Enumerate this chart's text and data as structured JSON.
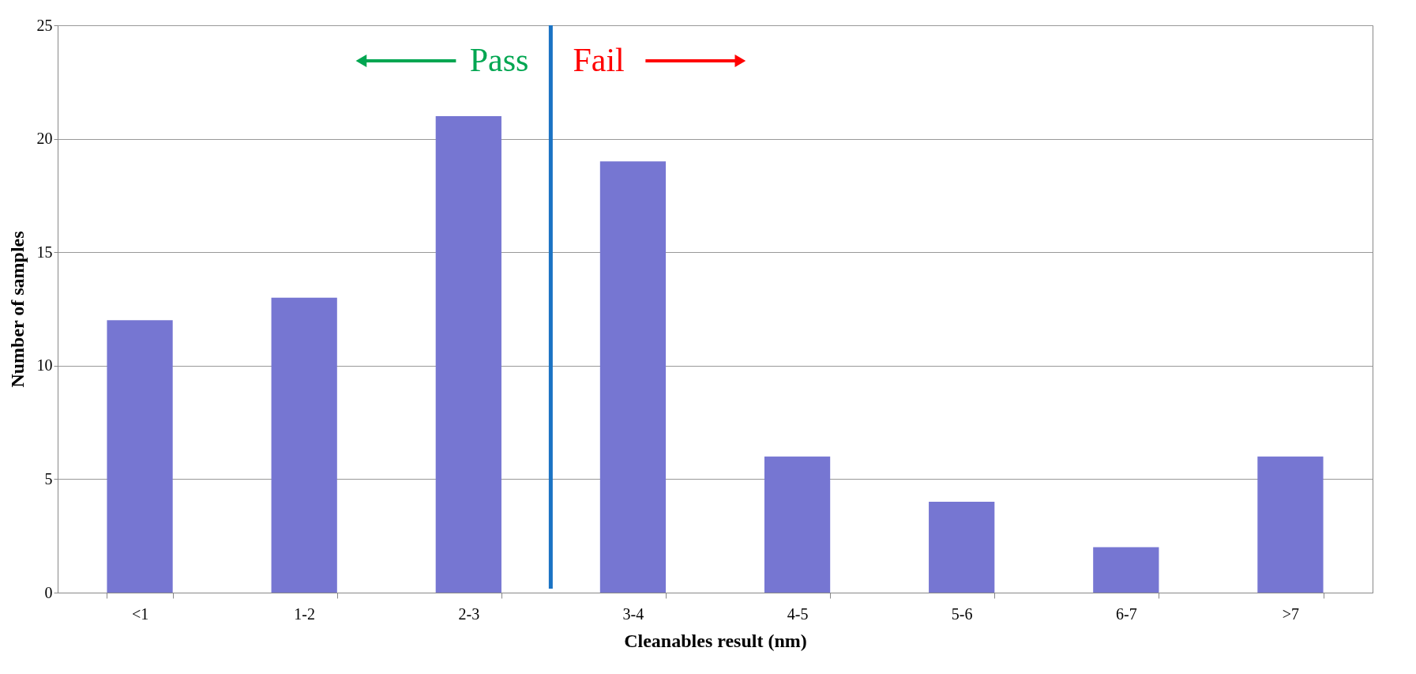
{
  "chart_data": {
    "type": "bar",
    "xlabel": "Cleanables result (nm)",
    "ylabel": "Number of samples",
    "categories": [
      "<1",
      "1-2",
      "2-3",
      "3-4",
      "4-5",
      "5-6",
      "6-7",
      ">7"
    ],
    "values": [
      12,
      13,
      21,
      19,
      6,
      4,
      2,
      6
    ],
    "color": "#7676d2",
    "ylim": [
      0,
      25
    ],
    "yticks": [
      0,
      5,
      10,
      15,
      20,
      25
    ],
    "grid": "y",
    "ref_lines": [
      {
        "axis": "x",
        "value": "3-4",
        "color": "#1a73c4"
      }
    ],
    "annotations": [
      "Pass",
      "Fail"
    ]
  }
}
